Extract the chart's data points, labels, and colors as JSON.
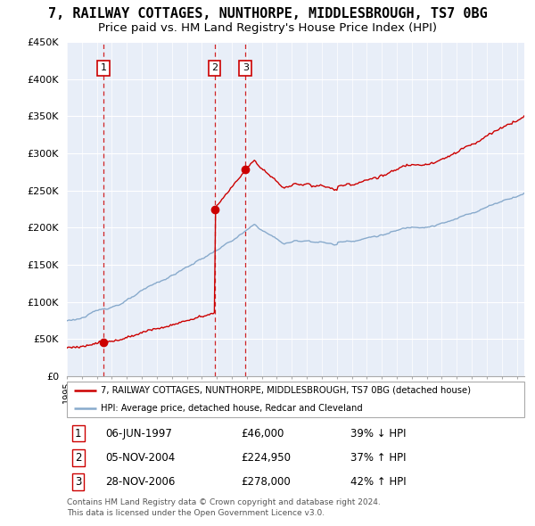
{
  "title": "7, RAILWAY COTTAGES, NUNTHORPE, MIDDLESBROUGH, TS7 0BG",
  "subtitle": "Price paid vs. HM Land Registry's House Price Index (HPI)",
  "ylim": [
    0,
    450000
  ],
  "yticks": [
    0,
    50000,
    100000,
    150000,
    200000,
    250000,
    300000,
    350000,
    400000,
    450000
  ],
  "ytick_labels": [
    "£0",
    "£50K",
    "£100K",
    "£150K",
    "£200K",
    "£250K",
    "£300K",
    "£350K",
    "£400K",
    "£450K"
  ],
  "sale_year_floats": [
    1997.44,
    2004.84,
    2006.91
  ],
  "sale_prices": [
    46000,
    224950,
    278000
  ],
  "sale_labels": [
    "1",
    "2",
    "3"
  ],
  "sale_info": [
    {
      "label": "1",
      "date": "06-JUN-1997",
      "price": "£46,000",
      "hpi": "39% ↓ HPI"
    },
    {
      "label": "2",
      "date": "05-NOV-2004",
      "price": "£224,950",
      "hpi": "37% ↑ HPI"
    },
    {
      "label": "3",
      "date": "28-NOV-2006",
      "price": "£278,000",
      "hpi": "42% ↑ HPI"
    }
  ],
  "property_line_color": "#cc0000",
  "hpi_line_color": "#88aacc",
  "sale_vline_color": "#cc0000",
  "plot_bg_color": "#e8eef8",
  "legend_property": "7, RAILWAY COTTAGES, NUNTHORPE, MIDDLESBROUGH, TS7 0BG (detached house)",
  "legend_hpi": "HPI: Average price, detached house, Redcar and Cleveland",
  "footnote1": "Contains HM Land Registry data © Crown copyright and database right 2024.",
  "footnote2": "This data is licensed under the Open Government Licence v3.0.",
  "grid_color": "#ffffff",
  "title_fontsize": 11,
  "subtitle_fontsize": 9.5
}
